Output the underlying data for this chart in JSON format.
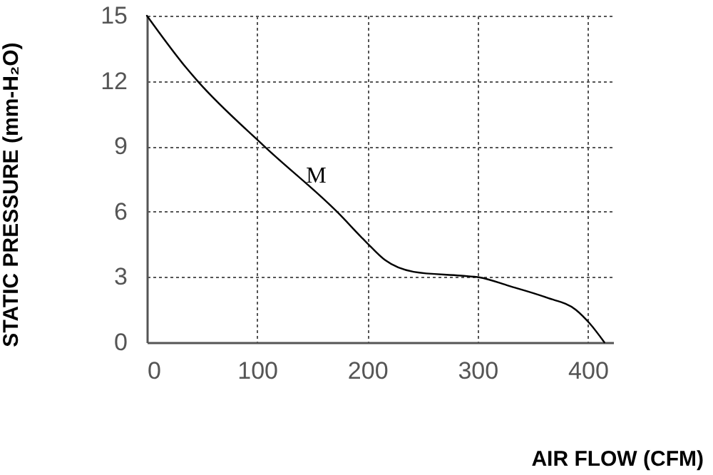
{
  "chart_data": {
    "type": "line",
    "xlabel": "AIR FLOW (CFM)",
    "ylabel": "STATIC PRESSURE (mm-H₂O)",
    "x": [
      0,
      35,
      46,
      106,
      173,
      199,
      216,
      242,
      285,
      302,
      328,
      363,
      389,
      402,
      415
    ],
    "series": [
      {
        "color": "#000000",
        "values": [
          15,
          12.65,
          12,
          9.03,
          5.97,
          4.6,
          3.78,
          3.24,
          3.06,
          2.98,
          2.6,
          2.05,
          1.5,
          0.85,
          0
        ]
      }
    ],
    "xlim": [
      0,
      423
    ],
    "ylim": [
      0,
      15
    ],
    "xticks": [
      0,
      100,
      200,
      300,
      400
    ],
    "yticks": [
      0,
      3,
      6,
      9,
      12,
      15
    ],
    "annotations": [
      "M"
    ],
    "grid": true,
    "marker": "none",
    "line_style": "solid"
  }
}
